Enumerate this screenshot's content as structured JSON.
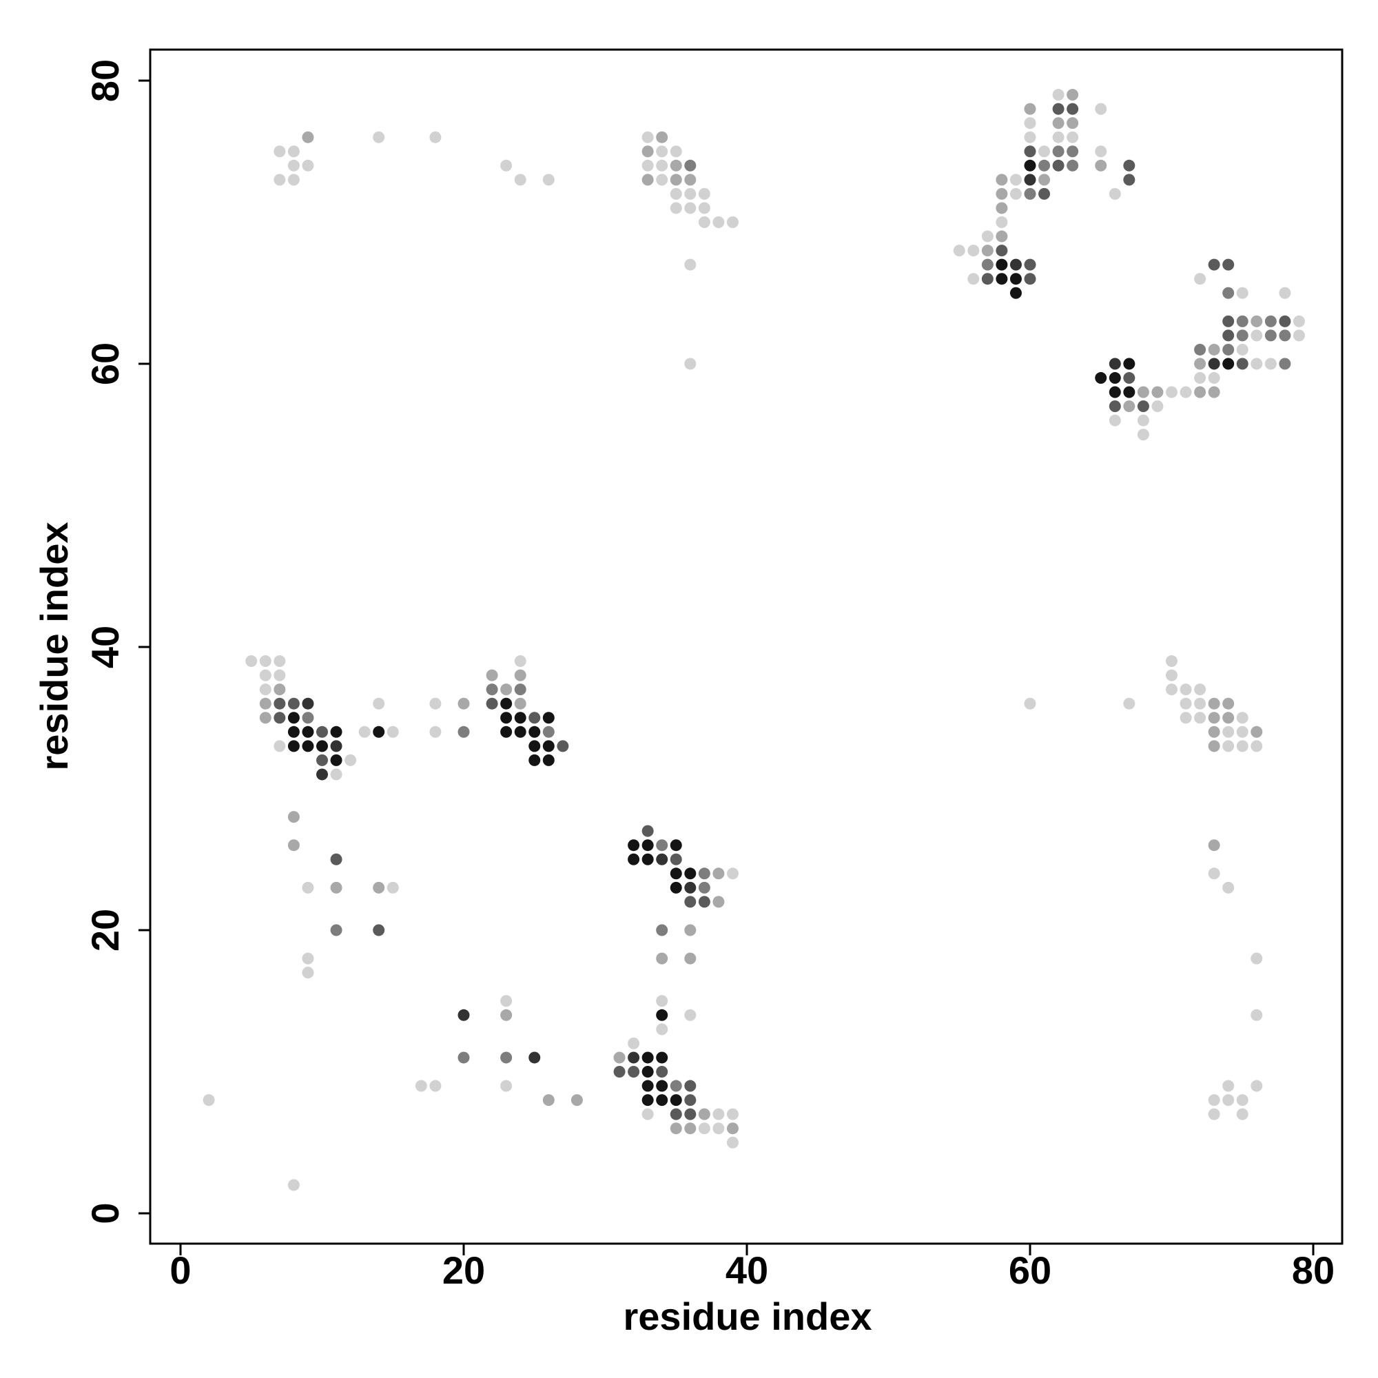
{
  "chart_data": {
    "type": "scatter",
    "title": "",
    "xlabel": "residue index",
    "ylabel": "residue index",
    "xlim": [
      -2,
      82
    ],
    "ylim": [
      -2,
      86
    ],
    "xticks": [
      0,
      20,
      40,
      60,
      80
    ],
    "yticks": [
      0,
      20,
      40,
      60,
      80
    ],
    "grid": false,
    "legend": "none",
    "shade_scale": {
      "1": "#141414",
      "2": "#333333",
      "3": "#5a5a5a",
      "4": "#7d7d7d",
      "5": "#a8a8a8",
      "6": "#d1d1d1"
    },
    "points": [
      [
        2,
        8,
        6
      ],
      [
        8,
        2,
        6
      ],
      [
        7,
        75,
        6
      ],
      [
        7,
        73,
        6
      ],
      [
        8,
        75,
        6
      ],
      [
        8,
        74,
        6
      ],
      [
        8,
        73,
        6
      ],
      [
        9,
        76,
        5
      ],
      [
        9,
        74,
        6
      ],
      [
        14,
        76,
        6
      ],
      [
        18,
        76,
        6
      ],
      [
        23,
        74,
        6
      ],
      [
        24,
        73,
        6
      ],
      [
        26,
        73,
        6
      ],
      [
        33,
        76,
        6
      ],
      [
        33,
        75,
        5
      ],
      [
        33,
        74,
        6
      ],
      [
        33,
        73,
        5
      ],
      [
        34,
        76,
        5
      ],
      [
        34,
        75,
        6
      ],
      [
        34,
        74,
        6
      ],
      [
        34,
        73,
        6
      ],
      [
        35,
        75,
        6
      ],
      [
        35,
        74,
        5
      ],
      [
        35,
        73,
        5
      ],
      [
        35,
        72,
        6
      ],
      [
        35,
        71,
        6
      ],
      [
        36,
        74,
        4
      ],
      [
        36,
        73,
        5
      ],
      [
        36,
        72,
        6
      ],
      [
        36,
        71,
        6
      ],
      [
        37,
        72,
        6
      ],
      [
        37,
        71,
        6
      ],
      [
        37,
        70,
        6
      ],
      [
        38,
        70,
        6
      ],
      [
        39,
        70,
        6
      ],
      [
        36,
        67,
        6
      ],
      [
        36,
        60,
        6
      ],
      [
        5,
        39,
        6
      ],
      [
        6,
        39,
        6
      ],
      [
        6,
        38,
        6
      ],
      [
        6,
        37,
        6
      ],
      [
        6,
        36,
        5
      ],
      [
        6,
        35,
        5
      ],
      [
        7,
        39,
        6
      ],
      [
        7,
        38,
        6
      ],
      [
        7,
        37,
        5
      ],
      [
        7,
        36,
        3
      ],
      [
        7,
        35,
        3
      ],
      [
        7,
        33,
        6
      ],
      [
        8,
        36,
        3
      ],
      [
        8,
        35,
        1
      ],
      [
        8,
        34,
        1
      ],
      [
        8,
        33,
        1
      ],
      [
        9,
        36,
        2
      ],
      [
        9,
        35,
        4
      ],
      [
        9,
        34,
        1
      ],
      [
        9,
        33,
        1
      ],
      [
        10,
        34,
        3
      ],
      [
        10,
        33,
        1
      ],
      [
        10,
        32,
        3
      ],
      [
        10,
        31,
        2
      ],
      [
        11,
        34,
        1
      ],
      [
        11,
        33,
        2
      ],
      [
        11,
        32,
        1
      ],
      [
        11,
        31,
        6
      ],
      [
        12,
        32,
        6
      ],
      [
        13,
        34,
        6
      ],
      [
        14,
        36,
        6
      ],
      [
        14,
        34,
        1
      ],
      [
        15,
        34,
        6
      ],
      [
        18,
        36,
        6
      ],
      [
        18,
        34,
        6
      ],
      [
        20,
        36,
        5
      ],
      [
        20,
        34,
        4
      ],
      [
        22,
        38,
        5
      ],
      [
        22,
        37,
        4
      ],
      [
        22,
        36,
        3
      ],
      [
        23,
        37,
        5
      ],
      [
        23,
        36,
        1
      ],
      [
        23,
        35,
        1
      ],
      [
        23,
        34,
        1
      ],
      [
        24,
        39,
        6
      ],
      [
        24,
        38,
        5
      ],
      [
        24,
        37,
        4
      ],
      [
        24,
        36,
        5
      ],
      [
        24,
        35,
        1
      ],
      [
        24,
        34,
        1
      ],
      [
        25,
        35,
        3
      ],
      [
        25,
        34,
        1
      ],
      [
        25,
        33,
        1
      ],
      [
        25,
        32,
        1
      ],
      [
        26,
        35,
        1
      ],
      [
        26,
        34,
        4
      ],
      [
        26,
        33,
        1
      ],
      [
        26,
        32,
        1
      ],
      [
        27,
        33,
        3
      ],
      [
        8,
        28,
        5
      ],
      [
        8,
        26,
        5
      ],
      [
        9,
        23,
        6
      ],
      [
        11,
        25,
        3
      ],
      [
        11,
        23,
        5
      ],
      [
        11,
        20,
        4
      ],
      [
        14,
        23,
        5
      ],
      [
        14,
        20,
        3
      ],
      [
        15,
        23,
        6
      ],
      [
        9,
        18,
        6
      ],
      [
        9,
        17,
        6
      ],
      [
        32,
        26,
        1
      ],
      [
        32,
        25,
        1
      ],
      [
        33,
        27,
        3
      ],
      [
        33,
        26,
        1
      ],
      [
        33,
        25,
        1
      ],
      [
        34,
        26,
        4
      ],
      [
        34,
        25,
        2
      ],
      [
        35,
        26,
        1
      ],
      [
        35,
        25,
        3
      ],
      [
        35,
        24,
        1
      ],
      [
        35,
        23,
        1
      ],
      [
        36,
        24,
        1
      ],
      [
        36,
        23,
        2
      ],
      [
        36,
        22,
        3
      ],
      [
        37,
        24,
        4
      ],
      [
        37,
        23,
        4
      ],
      [
        37,
        22,
        3
      ],
      [
        38,
        24,
        5
      ],
      [
        38,
        22,
        5
      ],
      [
        39,
        24,
        6
      ],
      [
        34,
        20,
        4
      ],
      [
        36,
        20,
        5
      ],
      [
        34,
        18,
        5
      ],
      [
        36,
        18,
        5
      ],
      [
        20,
        14,
        2
      ],
      [
        23,
        15,
        6
      ],
      [
        23,
        14,
        5
      ],
      [
        20,
        11,
        4
      ],
      [
        23,
        11,
        4
      ],
      [
        25,
        11,
        2
      ],
      [
        17,
        9,
        6
      ],
      [
        18,
        9,
        6
      ],
      [
        23,
        9,
        6
      ],
      [
        26,
        8,
        5
      ],
      [
        28,
        8,
        5
      ],
      [
        31,
        11,
        5
      ],
      [
        31,
        10,
        3
      ],
      [
        32,
        12,
        6
      ],
      [
        32,
        11,
        2
      ],
      [
        32,
        10,
        3
      ],
      [
        33,
        11,
        1
      ],
      [
        33,
        10,
        1
      ],
      [
        33,
        9,
        1
      ],
      [
        33,
        8,
        1
      ],
      [
        33,
        7,
        6
      ],
      [
        34,
        15,
        6
      ],
      [
        34,
        14,
        1
      ],
      [
        34,
        13,
        6
      ],
      [
        34,
        11,
        1
      ],
      [
        34,
        10,
        3
      ],
      [
        34,
        9,
        1
      ],
      [
        34,
        8,
        1
      ],
      [
        35,
        9,
        4
      ],
      [
        35,
        8,
        1
      ],
      [
        35,
        7,
        3
      ],
      [
        35,
        6,
        5
      ],
      [
        36,
        14,
        6
      ],
      [
        36,
        9,
        3
      ],
      [
        36,
        8,
        3
      ],
      [
        36,
        7,
        3
      ],
      [
        36,
        6,
        5
      ],
      [
        37,
        7,
        5
      ],
      [
        37,
        6,
        6
      ],
      [
        38,
        7,
        6
      ],
      [
        38,
        6,
        6
      ],
      [
        39,
        7,
        6
      ],
      [
        39,
        6,
        5
      ],
      [
        39,
        5,
        6
      ],
      [
        55,
        68,
        6
      ],
      [
        56,
        68,
        6
      ],
      [
        56,
        66,
        6
      ],
      [
        57,
        69,
        6
      ],
      [
        57,
        68,
        5
      ],
      [
        57,
        67,
        4
      ],
      [
        57,
        66,
        3
      ],
      [
        58,
        73,
        5
      ],
      [
        58,
        72,
        5
      ],
      [
        58,
        71,
        5
      ],
      [
        58,
        70,
        6
      ],
      [
        58,
        69,
        5
      ],
      [
        58,
        68,
        3
      ],
      [
        58,
        67,
        1
      ],
      [
        58,
        66,
        1
      ],
      [
        59,
        73,
        6
      ],
      [
        59,
        72,
        6
      ],
      [
        59,
        67,
        2
      ],
      [
        59,
        66,
        1
      ],
      [
        59,
        65,
        1
      ],
      [
        60,
        78,
        5
      ],
      [
        60,
        77,
        6
      ],
      [
        60,
        76,
        6
      ],
      [
        60,
        75,
        3
      ],
      [
        60,
        74,
        1
      ],
      [
        60,
        73,
        2
      ],
      [
        60,
        72,
        4
      ],
      [
        60,
        67,
        3
      ],
      [
        60,
        66,
        3
      ],
      [
        61,
        75,
        6
      ],
      [
        61,
        74,
        4
      ],
      [
        61,
        73,
        5
      ],
      [
        61,
        72,
        3
      ],
      [
        62,
        79,
        6
      ],
      [
        62,
        78,
        3
      ],
      [
        62,
        77,
        5
      ],
      [
        62,
        76,
        6
      ],
      [
        62,
        75,
        4
      ],
      [
        62,
        74,
        3
      ],
      [
        63,
        79,
        5
      ],
      [
        63,
        78,
        3
      ],
      [
        63,
        77,
        5
      ],
      [
        63,
        76,
        6
      ],
      [
        63,
        75,
        4
      ],
      [
        63,
        74,
        4
      ],
      [
        65,
        78,
        6
      ],
      [
        65,
        75,
        6
      ],
      [
        65,
        74,
        5
      ],
      [
        66,
        72,
        6
      ],
      [
        67,
        74,
        3
      ],
      [
        67,
        73,
        3
      ],
      [
        60,
        36,
        6
      ],
      [
        67,
        36,
        6
      ],
      [
        65,
        59,
        1
      ],
      [
        66,
        60,
        2
      ],
      [
        66,
        59,
        1
      ],
      [
        66,
        58,
        1
      ],
      [
        66,
        57,
        3
      ],
      [
        66,
        56,
        6
      ],
      [
        67,
        60,
        1
      ],
      [
        67,
        59,
        3
      ],
      [
        67,
        58,
        1
      ],
      [
        67,
        57,
        5
      ],
      [
        68,
        58,
        5
      ],
      [
        68,
        57,
        3
      ],
      [
        68,
        56,
        6
      ],
      [
        68,
        55,
        6
      ],
      [
        69,
        58,
        5
      ],
      [
        69,
        57,
        6
      ],
      [
        70,
        58,
        6
      ],
      [
        71,
        58,
        6
      ],
      [
        72,
        66,
        6
      ],
      [
        72,
        61,
        4
      ],
      [
        72,
        60,
        5
      ],
      [
        72,
        59,
        6
      ],
      [
        72,
        58,
        5
      ],
      [
        73,
        67,
        3
      ],
      [
        73,
        61,
        5
      ],
      [
        73,
        60,
        2
      ],
      [
        73,
        59,
        6
      ],
      [
        73,
        58,
        5
      ],
      [
        74,
        67,
        3
      ],
      [
        74,
        65,
        4
      ],
      [
        74,
        63,
        3
      ],
      [
        74,
        62,
        3
      ],
      [
        74,
        61,
        4
      ],
      [
        74,
        60,
        1
      ],
      [
        75,
        65,
        6
      ],
      [
        75,
        63,
        4
      ],
      [
        75,
        62,
        4
      ],
      [
        75,
        61,
        6
      ],
      [
        75,
        60,
        3
      ],
      [
        76,
        63,
        5
      ],
      [
        76,
        62,
        6
      ],
      [
        76,
        60,
        6
      ],
      [
        77,
        63,
        4
      ],
      [
        77,
        62,
        4
      ],
      [
        77,
        60,
        6
      ],
      [
        78,
        65,
        6
      ],
      [
        78,
        63,
        3
      ],
      [
        78,
        62,
        4
      ],
      [
        78,
        60,
        4
      ],
      [
        79,
        63,
        6
      ],
      [
        79,
        62,
        6
      ],
      [
        70,
        39,
        6
      ],
      [
        70,
        38,
        6
      ],
      [
        70,
        37,
        6
      ],
      [
        71,
        37,
        6
      ],
      [
        71,
        36,
        6
      ],
      [
        71,
        35,
        6
      ],
      [
        72,
        37,
        6
      ],
      [
        72,
        36,
        6
      ],
      [
        72,
        35,
        6
      ],
      [
        73,
        36,
        5
      ],
      [
        73,
        35,
        5
      ],
      [
        73,
        34,
        5
      ],
      [
        73,
        33,
        5
      ],
      [
        74,
        36,
        5
      ],
      [
        74,
        35,
        5
      ],
      [
        74,
        34,
        6
      ],
      [
        74,
        33,
        6
      ],
      [
        75,
        35,
        6
      ],
      [
        75,
        34,
        6
      ],
      [
        75,
        33,
        6
      ],
      [
        76,
        34,
        5
      ],
      [
        76,
        33,
        6
      ],
      [
        73,
        26,
        5
      ],
      [
        73,
        24,
        6
      ],
      [
        74,
        23,
        6
      ],
      [
        76,
        18,
        6
      ],
      [
        76,
        14,
        6
      ],
      [
        76,
        9,
        6
      ],
      [
        73,
        8,
        6
      ],
      [
        73,
        7,
        6
      ],
      [
        74,
        9,
        6
      ],
      [
        74,
        8,
        6
      ],
      [
        75,
        8,
        6
      ],
      [
        75,
        7,
        6
      ]
    ]
  }
}
